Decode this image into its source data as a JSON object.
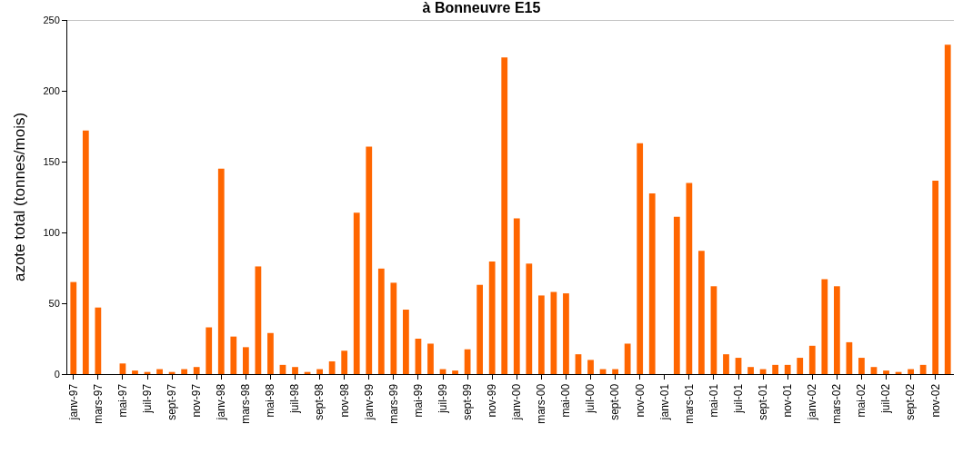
{
  "chart_data": {
    "type": "bar",
    "title": "à Bonneuvre E15",
    "ylabel": "azote total (tonnes/mois)",
    "categories": [
      "janv-97",
      null,
      "mars-97",
      null,
      "mai-97",
      null,
      "juil-97",
      null,
      "sept-97",
      null,
      "nov-97",
      null,
      "janv-98",
      null,
      "mars-98",
      null,
      "mai-98",
      null,
      "juil-98",
      null,
      "sept-98",
      null,
      "nov-98",
      null,
      "janv-99",
      null,
      "mars-99",
      null,
      "mai-99",
      null,
      "juil-99",
      null,
      "sept-99",
      null,
      "nov-99",
      null,
      "janv-00",
      null,
      "mars-00",
      null,
      "mai-00",
      null,
      "juil-00",
      null,
      "sept-00",
      null,
      "nov-00",
      null,
      "janv-01",
      null,
      "mars-01",
      null,
      "mai-01",
      null,
      "juil-01",
      null,
      "sept-01",
      null,
      "nov-01",
      null,
      "janv-02",
      null,
      "mars-02",
      null,
      "mai-02",
      null,
      "juil-02",
      null,
      "sept-02",
      null,
      "nov-02",
      null
    ],
    "values": [
      65,
      172,
      47,
      0,
      7.5,
      2.5,
      1.5,
      3.5,
      1.5,
      3.5,
      5,
      33,
      145,
      26.5,
      19,
      76,
      29,
      6.5,
      5,
      1.5,
      3.5,
      9,
      16.5,
      114,
      160.5,
      74.5,
      64.5,
      45.5,
      25,
      21.5,
      3.5,
      2.5,
      17.5,
      63,
      79.5,
      223.5,
      110,
      78,
      55.5,
      58,
      57,
      14,
      10,
      3.5,
      3.5,
      21.5,
      163,
      127.5,
      0,
      111,
      135,
      87,
      62,
      14,
      11.5,
      5,
      3.5,
      6.5,
      6.5,
      11.5,
      20,
      67,
      62,
      22.5,
      11.5,
      5,
      2.5,
      1.5,
      3.5,
      6.5,
      136.5,
      232.5
    ],
    "color": "#ff6600",
    "ylim": [
      0,
      250
    ],
    "yticks": [
      0,
      50,
      100,
      150,
      200,
      250
    ]
  }
}
